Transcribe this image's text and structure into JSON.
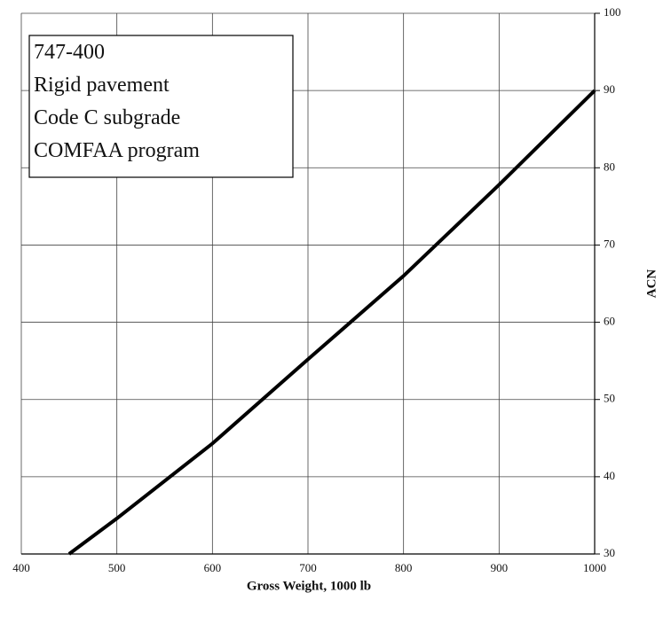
{
  "chart_data": {
    "type": "line",
    "annotation": [
      "747-400",
      "Rigid pavement",
      "Code C subgrade",
      "COMFAA program"
    ],
    "x_label": "Gross Weight, 1000 lb",
    "y_label": "ACN",
    "x": [
      450,
      500,
      600,
      700,
      800,
      900,
      1000
    ],
    "series": [
      {
        "color": "#000000",
        "values": [
          30,
          34.6,
          44.3,
          55.2,
          66,
          77.8,
          90
        ]
      }
    ],
    "xlim": [
      400,
      1000
    ],
    "xticks": [
      400,
      500,
      600,
      700,
      800,
      900,
      1000
    ],
    "ylim": [
      30,
      100
    ],
    "yticks": [
      30,
      40,
      50,
      60,
      70,
      80,
      90,
      100
    ],
    "y_axis_side": "right",
    "grid": true
  }
}
